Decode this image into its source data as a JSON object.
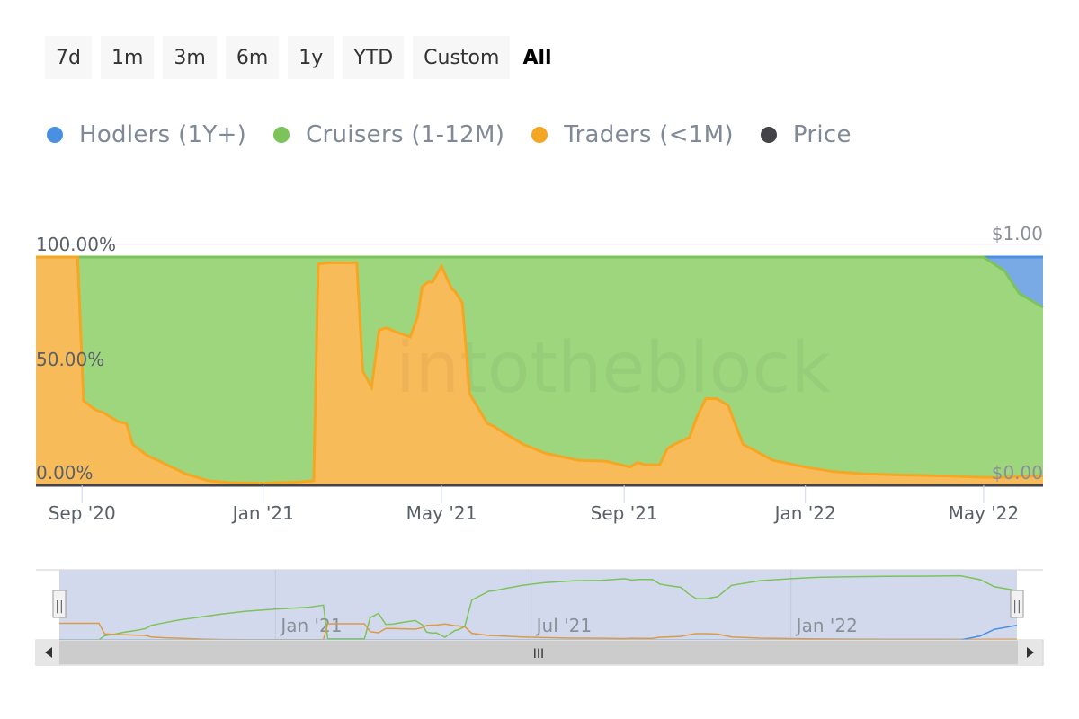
{
  "range_buttons": [
    "7d",
    "1m",
    "3m",
    "6m",
    "1y",
    "YTD",
    "Custom",
    "All"
  ],
  "active_range": "All",
  "legend": [
    {
      "label": "Hodlers (1Y+)",
      "color": "#4a90e2"
    },
    {
      "label": "Cruisers (1-12M)",
      "color": "#7cc35a"
    },
    {
      "label": "Traders (<1M)",
      "color": "#f5a623"
    },
    {
      "label": "Price",
      "color": "#434348"
    }
  ],
  "watermark": "intotheblock",
  "navigator": {
    "labels": [
      "Jan '21",
      "Jul '21",
      "Jan '22"
    ],
    "scroll_grip": "III",
    "handle_grip": "||"
  },
  "chart_data": {
    "type": "area",
    "stacking": "percent",
    "x_labels": [
      "Sep '20",
      "Jan '21",
      "May '21",
      "Sep '21",
      "Jan '22",
      "May '22"
    ],
    "x_label_dates": [
      "2020-09-01",
      "2021-01-01",
      "2021-05-01",
      "2021-09-01",
      "2022-01-01",
      "2022-05-01"
    ],
    "x_range": [
      "2020-08-01",
      "2022-06-10"
    ],
    "y_left": {
      "ticks": [
        "0.00%",
        "50.00%",
        "100.00%"
      ],
      "range": [
        0,
        100
      ]
    },
    "y_right": {
      "ticks": [
        "$0.00",
        "$1.00"
      ],
      "range": [
        0,
        1
      ]
    },
    "x": [
      "2020-08-01",
      "2020-08-25",
      "2020-08-29",
      "2020-09-02",
      "2020-09-10",
      "2020-09-15",
      "2020-09-25",
      "2020-10-01",
      "2020-10-05",
      "2020-10-15",
      "2020-10-25",
      "2020-11-10",
      "2020-11-25",
      "2020-12-10",
      "2021-01-01",
      "2021-01-25",
      "2021-02-04",
      "2021-02-07",
      "2021-02-15",
      "2021-03-05",
      "2021-03-09",
      "2021-03-15",
      "2021-03-20",
      "2021-03-25",
      "2021-04-01",
      "2021-04-10",
      "2021-04-15",
      "2021-04-18",
      "2021-04-22",
      "2021-04-25",
      "2021-05-01",
      "2021-05-08",
      "2021-05-10",
      "2021-05-15",
      "2021-05-20",
      "2021-06-01",
      "2021-06-05",
      "2021-06-12",
      "2021-06-25",
      "2021-07-10",
      "2021-08-01",
      "2021-08-20",
      "2021-09-05",
      "2021-09-10",
      "2021-09-15",
      "2021-09-25",
      "2021-09-30",
      "2021-10-05",
      "2021-10-15",
      "2021-10-20",
      "2021-10-26",
      "2021-11-02",
      "2021-11-10",
      "2021-11-20",
      "2021-12-10",
      "2022-01-01",
      "2022-01-20",
      "2022-02-10",
      "2022-03-10",
      "2022-04-10",
      "2022-05-01",
      "2022-05-15",
      "2022-05-25",
      "2022-06-10"
    ],
    "series": [
      {
        "name": "Traders (<1M)",
        "color": "#f5a623",
        "values": [
          100,
          100,
          100,
          37,
          33,
          32,
          28,
          27,
          18,
          13,
          10,
          5,
          2,
          1.2,
          1.0,
          1.5,
          2,
          97,
          97.5,
          97.5,
          50,
          43,
          68,
          69,
          67,
          65,
          74,
          87,
          89,
          89,
          96,
          86,
          85,
          80,
          40,
          27,
          26,
          23,
          18,
          14,
          11,
          10.5,
          8,
          10,
          9,
          9,
          16,
          18,
          21,
          30,
          38,
          38,
          35,
          18,
          11,
          8,
          6,
          5,
          4.5,
          4,
          3.5,
          3.5,
          4,
          4
        ]
      },
      {
        "name": "Cruisers (1-12M)",
        "color": "#7cc35a",
        "values": [
          0,
          0,
          0,
          63,
          67,
          68,
          72,
          73,
          82,
          87,
          90,
          95,
          98,
          98.8,
          99.0,
          98.5,
          98,
          3,
          2.5,
          2.5,
          50,
          57,
          32,
          31,
          33,
          35,
          26,
          13,
          11,
          11,
          4,
          14,
          15,
          20,
          60,
          73,
          74,
          77,
          82,
          86,
          89,
          89.5,
          92,
          90,
          91,
          91,
          84,
          82,
          79,
          70,
          62,
          62,
          65,
          82,
          89,
          92,
          94,
          95,
          95.5,
          96,
          96.5,
          90.5,
          80,
          74
        ]
      },
      {
        "name": "Hodlers (1Y+)",
        "color": "#4a90e2",
        "values": [
          0,
          0,
          0,
          0,
          0,
          0,
          0,
          0,
          0,
          0,
          0,
          0,
          0,
          0,
          0,
          0,
          0,
          0,
          0,
          0,
          0,
          0,
          0,
          0,
          0,
          0,
          0,
          0,
          0,
          0,
          0,
          0,
          0,
          0,
          0,
          0,
          0,
          0,
          0,
          0,
          0,
          0,
          0,
          0,
          0,
          0,
          0,
          0,
          0,
          0,
          0,
          0,
          0,
          0,
          0,
          0,
          0,
          0,
          0,
          0,
          0,
          6,
          16,
          22
        ]
      },
      {
        "name": "Price",
        "color": "#434348",
        "values": [
          0,
          0,
          0,
          0,
          0,
          0,
          0,
          0,
          0,
          0,
          0,
          0,
          0,
          0,
          0,
          0,
          0,
          0,
          0,
          0,
          0,
          0,
          0,
          0,
          0,
          0,
          0,
          0,
          0,
          0,
          0,
          0,
          0,
          0,
          0,
          0,
          0,
          0,
          0,
          0,
          0,
          0,
          0,
          0,
          0,
          0,
          0,
          0,
          0,
          0,
          0,
          0,
          0,
          0,
          0,
          0,
          0,
          0,
          0,
          0,
          0,
          0,
          0,
          0
        ]
      }
    ]
  }
}
